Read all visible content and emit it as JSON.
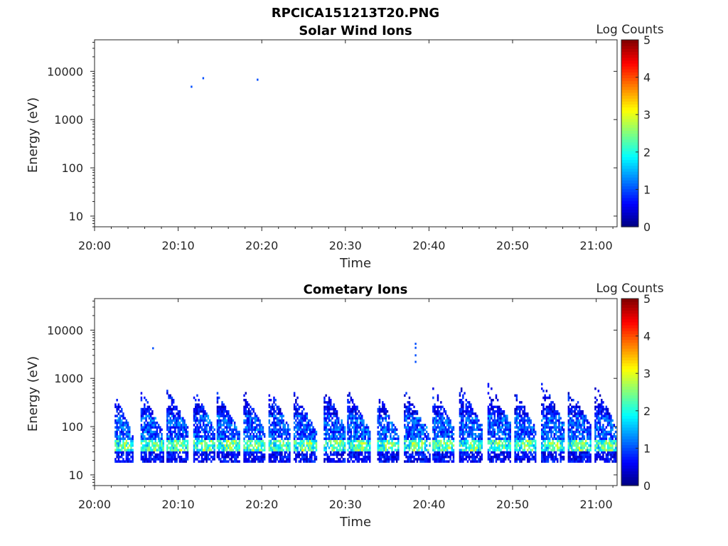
{
  "figure": {
    "filename": "RPCICA151213T20.PNG"
  },
  "chart_data": [
    {
      "type": "heatmap",
      "title": "Solar Wind Ions",
      "xlabel": "Time",
      "ylabel": "Energy (eV)",
      "x_ticks": [
        "20:00",
        "20:10",
        "20:20",
        "20:30",
        "20:40",
        "20:50",
        "21:00"
      ],
      "y_ticks": [
        "10",
        "100",
        "1000",
        "10000"
      ],
      "y_scale": "log",
      "ylim": [
        6,
        45000
      ],
      "xlim_minutes": [
        0,
        62.5
      ],
      "colorbar": {
        "label": "Log Counts",
        "ticks": [
          "0",
          "1",
          "2",
          "3",
          "4",
          "5"
        ],
        "range": [
          0,
          5
        ],
        "colormap": "jet"
      },
      "bursts": [],
      "points": [
        {
          "t": 11.6,
          "e": 4800,
          "v": 0.2
        },
        {
          "t": 13.0,
          "e": 7200,
          "v": 0.2
        },
        {
          "t": 19.5,
          "e": 6700,
          "v": 0.2
        }
      ]
    },
    {
      "type": "heatmap",
      "title": "Cometary Ions",
      "xlabel": "Time",
      "ylabel": "Energy (eV)",
      "x_ticks": [
        "20:00",
        "20:10",
        "20:20",
        "20:30",
        "20:40",
        "20:50",
        "21:00"
      ],
      "y_ticks": [
        "10",
        "100",
        "1000",
        "10000"
      ],
      "y_scale": "log",
      "ylim": [
        6,
        45000
      ],
      "xlim_minutes": [
        0,
        62.5
      ],
      "colorbar": {
        "label": "Log Counts",
        "ticks": [
          "0",
          "1",
          "2",
          "3",
          "4",
          "5"
        ],
        "range": [
          0,
          5
        ],
        "colormap": "jet"
      },
      "bursts": [
        {
          "t_start": 2.4,
          "t_end": 4.6,
          "e_top": 420
        },
        {
          "t_start": 5.5,
          "t_end": 8.2,
          "e_top": 480
        },
        {
          "t_start": 8.6,
          "t_end": 11.2,
          "e_top": 600
        },
        {
          "t_start": 11.8,
          "t_end": 14.4,
          "e_top": 540
        },
        {
          "t_start": 14.6,
          "t_end": 17.4,
          "e_top": 470
        },
        {
          "t_start": 17.8,
          "t_end": 20.4,
          "e_top": 510
        },
        {
          "t_start": 20.8,
          "t_end": 23.4,
          "e_top": 560
        },
        {
          "t_start": 23.8,
          "t_end": 26.6,
          "e_top": 480
        },
        {
          "t_start": 27.4,
          "t_end": 30.0,
          "e_top": 600
        },
        {
          "t_start": 30.2,
          "t_end": 33.0,
          "e_top": 500
        },
        {
          "t_start": 33.8,
          "t_end": 36.4,
          "e_top": 450
        },
        {
          "t_start": 37.0,
          "t_end": 40.0,
          "e_top": 500
        },
        {
          "t_start": 40.4,
          "t_end": 43.0,
          "e_top": 600
        },
        {
          "t_start": 43.6,
          "t_end": 46.4,
          "e_top": 650
        },
        {
          "t_start": 47.0,
          "t_end": 49.8,
          "e_top": 750
        },
        {
          "t_start": 50.2,
          "t_end": 52.8,
          "e_top": 550
        },
        {
          "t_start": 53.4,
          "t_end": 56.2,
          "e_top": 750
        },
        {
          "t_start": 56.6,
          "t_end": 59.4,
          "e_top": 650
        },
        {
          "t_start": 59.8,
          "t_end": 62.4,
          "e_top": 650
        }
      ],
      "points": [
        {
          "t": 7.0,
          "e": 4200,
          "v": 0.2
        },
        {
          "t": 38.4,
          "e": 5200,
          "v": 0.2
        },
        {
          "t": 38.4,
          "e": 4300,
          "v": 0.2
        },
        {
          "t": 38.4,
          "e": 3000,
          "v": 0.2
        },
        {
          "t": 38.4,
          "e": 2200,
          "v": 0.2
        }
      ]
    }
  ]
}
